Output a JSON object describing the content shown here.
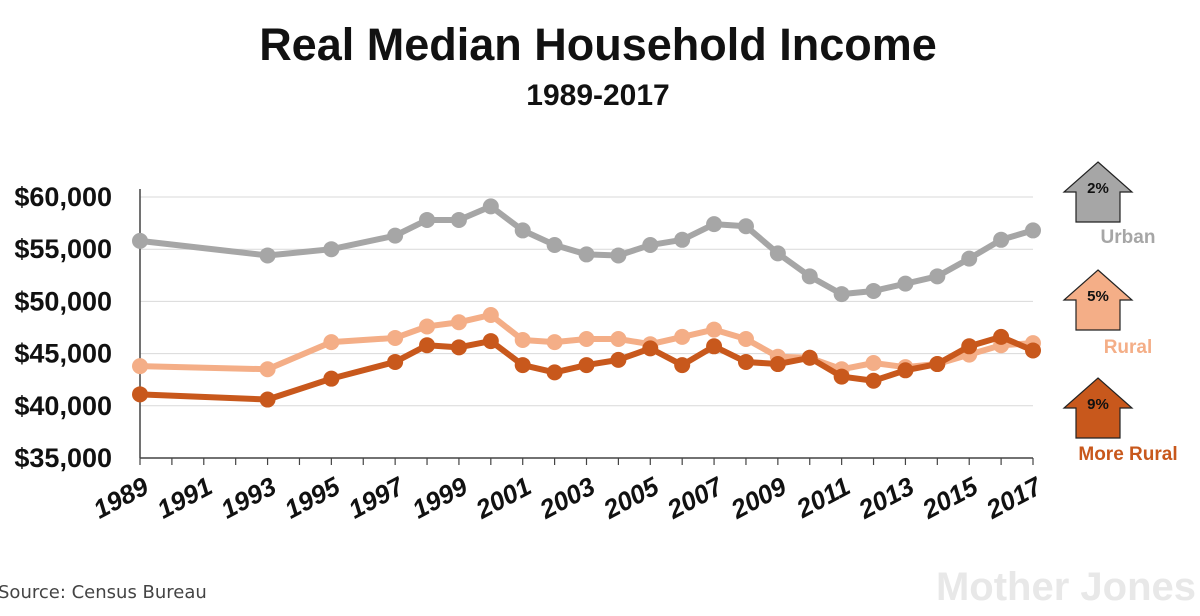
{
  "chart_data": {
    "type": "line",
    "title": "Real Median Household Income",
    "subtitle": "1989-2017",
    "xlabel": "",
    "ylabel": "",
    "ylim": [
      35000,
      60000
    ],
    "y_ticks": [
      {
        "value": 60000,
        "label": "$60,000"
      },
      {
        "value": 55000,
        "label": "$55,000"
      },
      {
        "value": 50000,
        "label": "$50,000"
      },
      {
        "value": 45000,
        "label": "$45,000"
      },
      {
        "value": 40000,
        "label": "$40,000"
      },
      {
        "value": 35000,
        "label": "$35,000"
      }
    ],
    "xlim": [
      1989,
      2017
    ],
    "x_ticks": [
      1989,
      1991,
      1993,
      1995,
      1997,
      1999,
      2001,
      2003,
      2005,
      2007,
      2009,
      2011,
      2013,
      2015,
      2017
    ],
    "x_tick_labels": [
      "1989",
      "1991",
      "1993",
      "1995",
      "1997",
      "1999",
      "2001",
      "2003",
      "2005",
      "2007",
      "2009",
      "2011",
      "2013",
      "2015",
      "2017"
    ],
    "grid": true,
    "legend_position": "right",
    "series": [
      {
        "name": "Urban",
        "change": "2%",
        "color": "#a6a6a6",
        "x": [
          1989,
          1993,
          1995,
          1997,
          1998,
          1999,
          2000,
          2001,
          2002,
          2003,
          2004,
          2005,
          2006,
          2007,
          2008,
          2009,
          2010,
          2011,
          2012,
          2013,
          2014,
          2015,
          2016,
          2017
        ],
        "values": [
          55800,
          54400,
          55000,
          56300,
          57800,
          57800,
          59100,
          56800,
          55400,
          54500,
          54400,
          55400,
          55900,
          57400,
          57200,
          54600,
          52400,
          50700,
          51000,
          51700,
          52400,
          54100,
          55900,
          56800
        ]
      },
      {
        "name": "Rural",
        "change": "5%",
        "color": "#f4ae87",
        "x": [
          1989,
          1993,
          1995,
          1997,
          1998,
          1999,
          2000,
          2001,
          2002,
          2003,
          2004,
          2005,
          2006,
          2007,
          2008,
          2009,
          2010,
          2011,
          2012,
          2013,
          2014,
          2015,
          2016,
          2017
        ],
        "values": [
          43800,
          43500,
          46100,
          46500,
          47600,
          48000,
          48700,
          46300,
          46100,
          46400,
          46400,
          45900,
          46600,
          47300,
          46400,
          44700,
          44600,
          43500,
          44100,
          43700,
          44000,
          44900,
          45800,
          46000
        ]
      },
      {
        "name": "More Rural",
        "change": "9%",
        "color": "#c8581c",
        "x": [
          1989,
          1993,
          1995,
          1997,
          1998,
          1999,
          2000,
          2001,
          2002,
          2003,
          2004,
          2005,
          2006,
          2007,
          2008,
          2009,
          2010,
          2011,
          2012,
          2013,
          2014,
          2015,
          2016,
          2017
        ],
        "values": [
          41100,
          40600,
          42600,
          44200,
          45800,
          45600,
          46200,
          43900,
          43200,
          43900,
          44400,
          45500,
          43900,
          45700,
          44200,
          44000,
          44600,
          42800,
          42400,
          43400,
          44000,
          45700,
          46600,
          45300
        ]
      }
    ]
  },
  "source": "Source: Census Bureau",
  "brand": "Mother Jones",
  "colors": {
    "axis": "#444444",
    "grid": "#d9d9d9",
    "background": "#ffffff"
  }
}
